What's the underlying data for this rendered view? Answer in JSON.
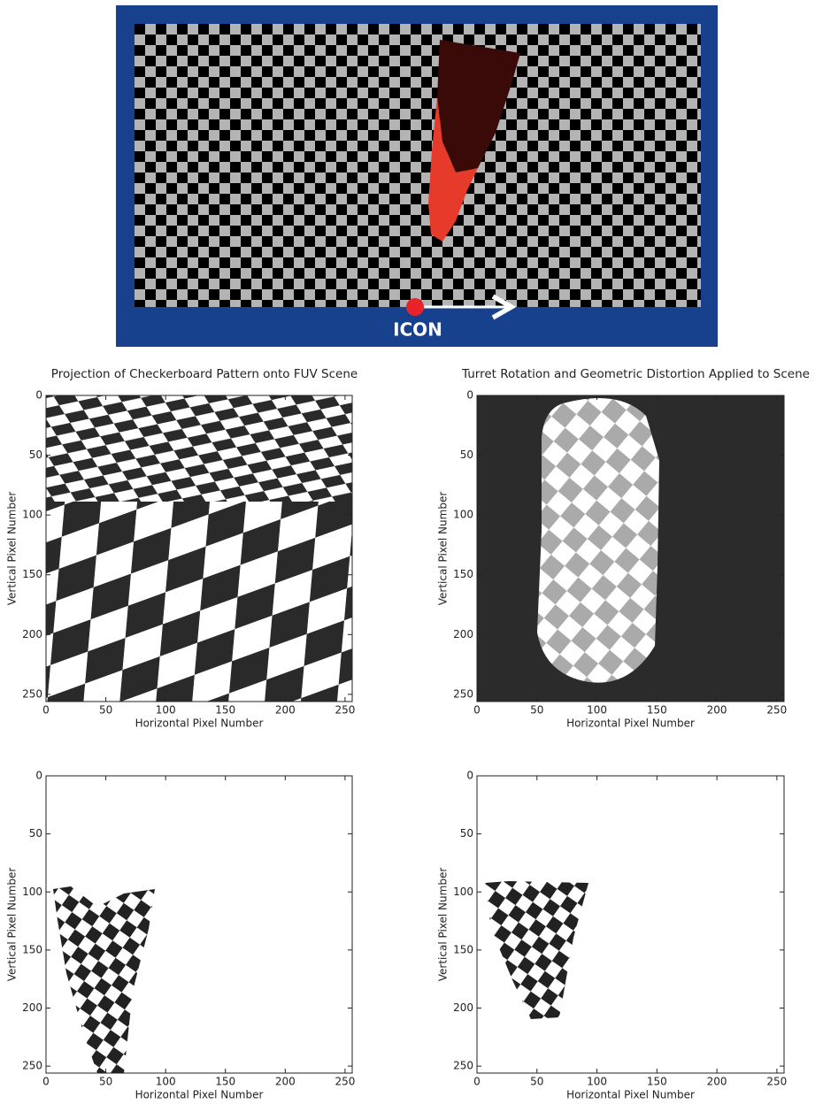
{
  "figure": {
    "top_panel": {
      "label": "ICON"
    },
    "panels": [
      {
        "title": "Projection of Checkerboard Pattern onto FUV Scene",
        "xlabel": "Horizontal Pixel Number",
        "ylabel": "Vertical Pixel Number",
        "xlim": [
          0,
          256
        ],
        "ylim": [
          0,
          256
        ],
        "xticks": [
          0,
          50,
          100,
          150,
          200,
          250
        ],
        "yticks": [
          0,
          50,
          100,
          150,
          200,
          250
        ]
      },
      {
        "title": "Turret Rotation and Geometric Distortion Applied to Scene",
        "xlabel": "Horizontal Pixel Number",
        "ylabel": "Vertical Pixel Number",
        "xlim": [
          0,
          256
        ],
        "ylim": [
          0,
          256
        ],
        "xticks": [
          0,
          50,
          100,
          150,
          200,
          250
        ],
        "yticks": [
          0,
          50,
          100,
          150,
          200,
          250
        ]
      },
      {
        "xlabel": "Horizontal Pixel Number",
        "ylabel": "Vertical Pixel Number",
        "xlim": [
          0,
          256
        ],
        "ylim": [
          0,
          256
        ],
        "xticks": [
          0,
          50,
          100,
          150,
          200,
          250
        ],
        "yticks": [
          0,
          50,
          100,
          150,
          200,
          250
        ]
      },
      {
        "xlabel": "Horizontal Pixel Number",
        "ylabel": "Vertical Pixel Number",
        "xlim": [
          0,
          256
        ],
        "ylim": [
          0,
          256
        ],
        "xticks": [
          0,
          50,
          100,
          150,
          200,
          250
        ],
        "yticks": [
          0,
          50,
          100,
          150,
          200,
          250
        ]
      }
    ]
  }
}
